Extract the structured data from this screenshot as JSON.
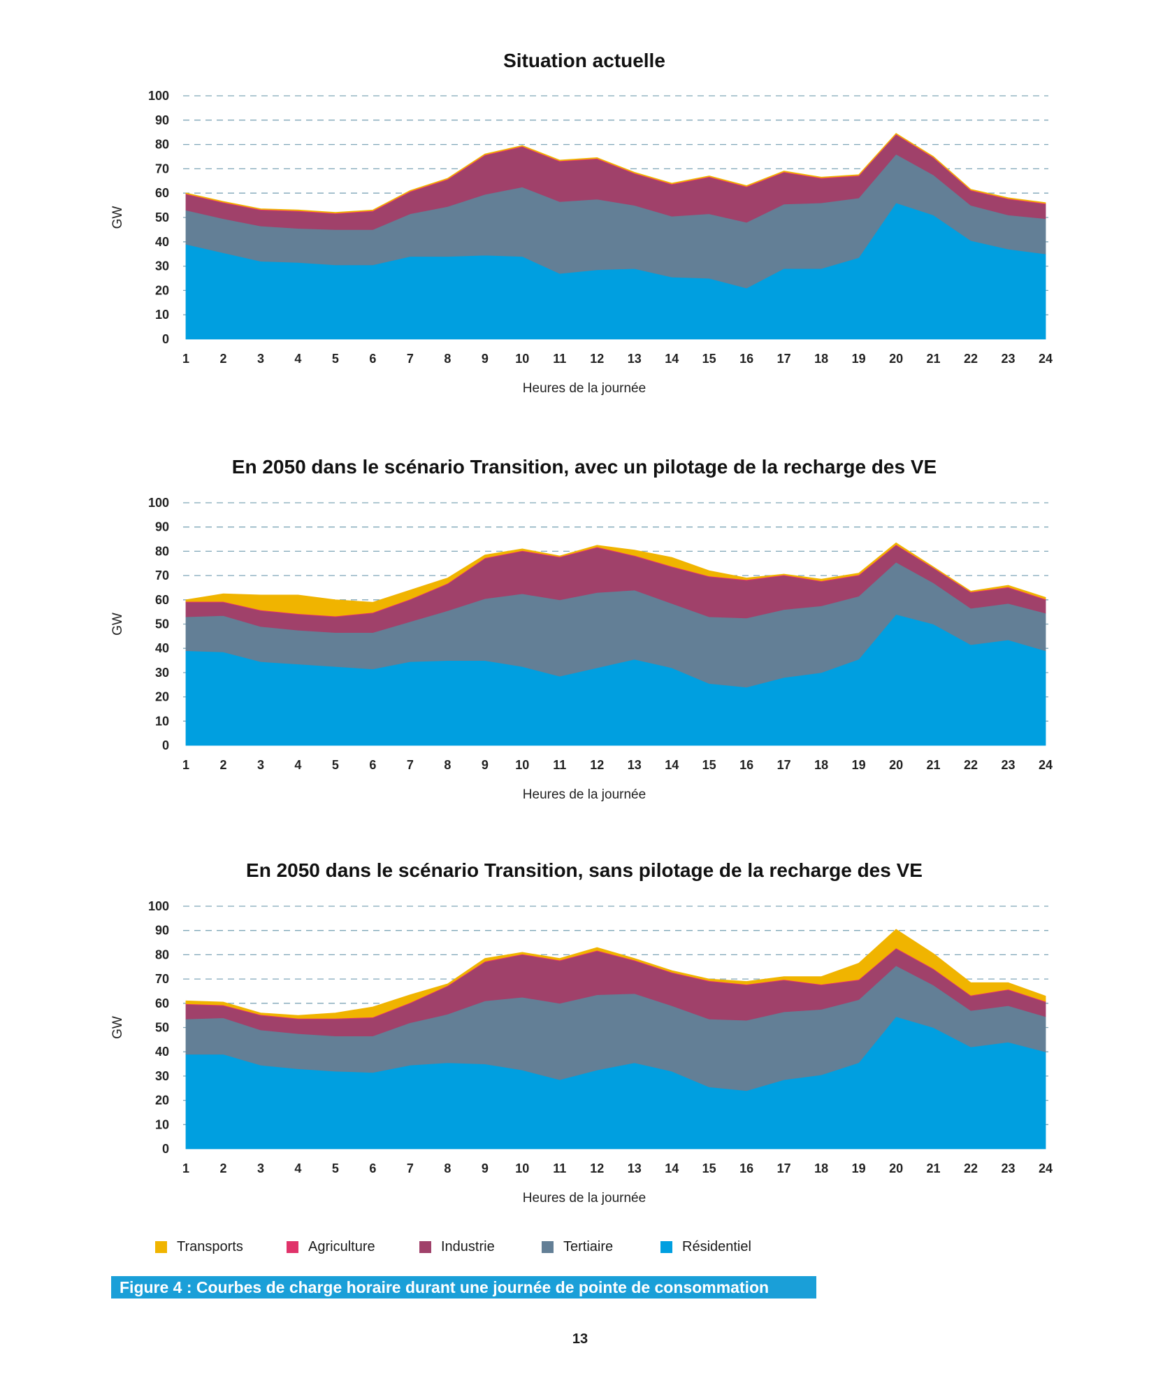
{
  "chart_data": [
    {
      "type": "area",
      "stacked": true,
      "title": "Situation actuelle",
      "xlabel": "Heures de la journée",
      "ylabel": "GW",
      "ylim": [
        0,
        100
      ],
      "yticks": [
        0,
        10,
        20,
        30,
        40,
        50,
        60,
        70,
        80,
        90,
        100
      ],
      "grid": true,
      "x": [
        1,
        2,
        3,
        4,
        5,
        6,
        7,
        8,
        9,
        10,
        11,
        12,
        13,
        14,
        15,
        16,
        17,
        18,
        19,
        20,
        21,
        22,
        23,
        24
      ],
      "series": [
        {
          "name": "Résidentiel",
          "color": "#009FE0",
          "values": [
            39,
            35.5,
            32,
            31.5,
            30.5,
            30.5,
            34,
            34,
            34.5,
            34,
            27,
            28.5,
            29,
            25.5,
            25,
            21,
            29,
            29,
            33.5,
            56,
            51,
            40.5,
            37,
            35
          ]
        },
        {
          "name": "Tertiaire",
          "color": "#637F96",
          "values": [
            14,
            14,
            14.5,
            14,
            14.5,
            14.5,
            17.5,
            20.5,
            25,
            28.5,
            29.5,
            29,
            26,
            25,
            26.5,
            27,
            26.5,
            27,
            24.5,
            20,
            16.5,
            14.5,
            14,
            14.5
          ]
        },
        {
          "name": "Industrie",
          "color": "#A0416A",
          "values": [
            6.5,
            6.5,
            6.5,
            7,
            6.5,
            7.5,
            9,
            11,
            16,
            16.5,
            16.5,
            16.5,
            13,
            13,
            15,
            14.5,
            13,
            10,
            9,
            8,
            7,
            6,
            6.5,
            6
          ]
        },
        {
          "name": "Agriculture",
          "color": "#E0336A",
          "values": [
            0.3,
            0.3,
            0.3,
            0.3,
            0.3,
            0.3,
            0.3,
            0.3,
            0.3,
            0.3,
            0.3,
            0.3,
            0.3,
            0.3,
            0.3,
            0.3,
            0.3,
            0.3,
            0.3,
            0.3,
            0.3,
            0.3,
            0.3,
            0.3
          ]
        },
        {
          "name": "Transports",
          "color": "#F0B400",
          "values": [
            0.3,
            0.3,
            0.3,
            0.3,
            0.3,
            0.3,
            0.3,
            0.3,
            0.3,
            0.3,
            0.3,
            0.3,
            0.3,
            0.3,
            0.3,
            0.3,
            0.3,
            0.3,
            0.3,
            0.3,
            0.3,
            0.3,
            0.3,
            0.3
          ]
        }
      ]
    },
    {
      "type": "area",
      "stacked": true,
      "title": "En 2050 dans le scénario Transition, avec un pilotage de la recharge des VE",
      "xlabel": "Heures de la journée",
      "ylabel": "GW",
      "ylim": [
        0,
        100
      ],
      "yticks": [
        0,
        10,
        20,
        30,
        40,
        50,
        60,
        70,
        80,
        90,
        100
      ],
      "grid": true,
      "x": [
        1,
        2,
        3,
        4,
        5,
        6,
        7,
        8,
        9,
        10,
        11,
        12,
        13,
        14,
        15,
        16,
        17,
        18,
        19,
        20,
        21,
        22,
        23,
        24
      ],
      "series": [
        {
          "name": "Résidentiel",
          "color": "#009FE0",
          "values": [
            39,
            38.5,
            34.5,
            33.5,
            32.5,
            31.5,
            34.5,
            35,
            35,
            32.5,
            28.5,
            32,
            35.5,
            32,
            25.5,
            24,
            28,
            30,
            35.5,
            54,
            50,
            41.5,
            43.5,
            39
          ]
        },
        {
          "name": "Tertiaire",
          "color": "#637F96",
          "values": [
            14,
            15,
            14.5,
            14,
            14,
            15,
            16.5,
            20.5,
            25.5,
            30,
            31.5,
            31,
            28.5,
            26.5,
            27.5,
            28.5,
            28,
            27.5,
            26,
            21.5,
            17,
            15,
            15,
            15.5
          ]
        },
        {
          "name": "Industrie",
          "color": "#A0416A",
          "values": [
            6,
            5.5,
            6.5,
            6.5,
            6.5,
            8,
            9,
            11,
            16.5,
            17.5,
            17.5,
            18.5,
            14,
            15,
            16.5,
            15.5,
            14,
            10,
            8.5,
            7,
            6,
            6.5,
            6.5,
            5.5
          ]
        },
        {
          "name": "Agriculture",
          "color": "#E0336A",
          "values": [
            0.3,
            0.3,
            0.3,
            0.3,
            0.3,
            0.3,
            0.3,
            0.3,
            0.3,
            0.3,
            0.3,
            0.3,
            0.3,
            0.3,
            0.3,
            0.3,
            0.3,
            0.3,
            0.3,
            0.3,
            0.3,
            0.3,
            0.3,
            0.3
          ]
        },
        {
          "name": "Transports",
          "color": "#F0B400",
          "values": [
            0.7,
            3.2,
            6.2,
            7.7,
            6.7,
            4.2,
            3.7,
            2.2,
            1.2,
            0.7,
            0.3,
            0.7,
            2.2,
            3.7,
            2.2,
            0.7,
            0.3,
            0.7,
            0.7,
            0.7,
            0.3,
            0.3,
            0.7,
            0.7
          ]
        }
      ]
    },
    {
      "type": "area",
      "stacked": true,
      "title": "En 2050 dans le scénario Transition, sans pilotage de la recharge des VE",
      "xlabel": "Heures de la journée",
      "ylabel": "GW",
      "ylim": [
        0,
        100
      ],
      "yticks": [
        0,
        10,
        20,
        30,
        40,
        50,
        60,
        70,
        80,
        90,
        100
      ],
      "grid": true,
      "x": [
        1,
        2,
        3,
        4,
        5,
        6,
        7,
        8,
        9,
        10,
        11,
        12,
        13,
        14,
        15,
        16,
        17,
        18,
        19,
        20,
        21,
        22,
        23,
        24
      ],
      "series": [
        {
          "name": "Résidentiel",
          "color": "#009FE0",
          "values": [
            39,
            39,
            34.5,
            33,
            32,
            31.5,
            34.5,
            35.5,
            35,
            32.5,
            28.5,
            32.5,
            35.5,
            32,
            25.5,
            24,
            28.5,
            30.5,
            35.5,
            54.5,
            50,
            42,
            44,
            40
          ]
        },
        {
          "name": "Tertiaire",
          "color": "#637F96",
          "values": [
            14.5,
            15,
            14.5,
            14.5,
            14.5,
            15,
            17.5,
            20,
            26,
            30,
            31.5,
            31,
            28.5,
            27,
            28,
            29,
            28,
            27,
            26,
            21,
            17.5,
            15,
            15,
            14.5
          ]
        },
        {
          "name": "Industrie",
          "color": "#A0416A",
          "values": [
            6,
            5,
            6,
            6,
            7,
            7.5,
            8,
            11.5,
            16,
            17.5,
            17.5,
            18,
            13.5,
            13.5,
            15.5,
            14.5,
            13,
            10,
            8,
            7,
            6.5,
            6,
            6.5,
            6
          ]
        },
        {
          "name": "Agriculture",
          "color": "#E0336A",
          "values": [
            0.3,
            0.3,
            0.3,
            0.3,
            0.3,
            0.3,
            0.3,
            0.3,
            0.3,
            0.3,
            0.3,
            0.3,
            0.3,
            0.3,
            0.3,
            0.3,
            0.3,
            0.3,
            0.3,
            0.3,
            0.3,
            0.3,
            0.3,
            0.3
          ]
        },
        {
          "name": "Transports",
          "color": "#F0B400",
          "values": [
            1.2,
            1.2,
            0.7,
            1.2,
            2.2,
            4.2,
            3.2,
            0.7,
            1.2,
            0.7,
            0.7,
            1.2,
            0.7,
            0.7,
            0.7,
            1.2,
            1.2,
            3.2,
            6.7,
            7.7,
            6.2,
            5.2,
            2.7,
            2.2
          ]
        }
      ]
    }
  ],
  "legend": [
    {
      "label": "Transports",
      "color": "#F0B400"
    },
    {
      "label": "Agriculture",
      "color": "#E0336A"
    },
    {
      "label": "Industrie",
      "color": "#A0416A"
    },
    {
      "label": "Tertiaire",
      "color": "#637F96"
    },
    {
      "label": "Résidentiel",
      "color": "#009FE0"
    }
  ],
  "caption": "Figure 4 : Courbes de charge horaire durant une journée de pointe de consommation",
  "page_number": "13"
}
